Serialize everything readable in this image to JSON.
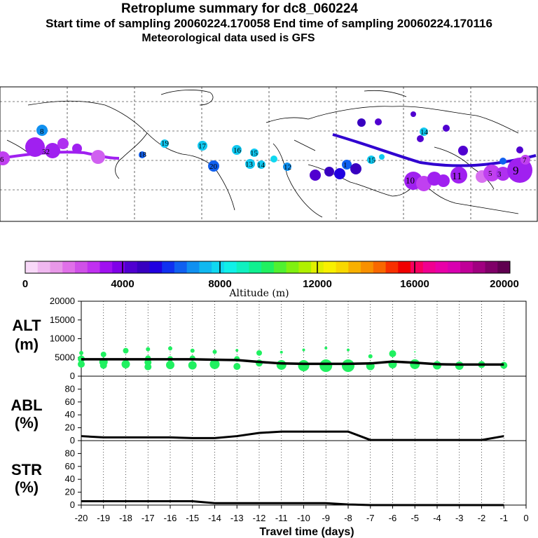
{
  "header": {
    "title": "Retroplume summary for dc8_060224",
    "line2": "Start time of sampling 20060224.170058     End time of sampling 20060224.170116",
    "line3": "Meteorological data used is GFS"
  },
  "colorbar": {
    "colors": [
      "#f8d8f8",
      "#f0b8f0",
      "#e898e8",
      "#e070e8",
      "#d050e8",
      "#c030f0",
      "#a010f0",
      "#8000e8",
      "#5000d0",
      "#3800c0",
      "#2000e0",
      "#1030f0",
      "#1060f0",
      "#1090f0",
      "#10b8f0",
      "#10d8f0",
      "#10f0e8",
      "#10f0c0",
      "#10f090",
      "#20f060",
      "#50f030",
      "#80f010",
      "#b0f000",
      "#e0f000",
      "#f8f000",
      "#f8d800",
      "#f8b000",
      "#f89000",
      "#f86800",
      "#f83000",
      "#f00000",
      "#f80060",
      "#f00090",
      "#e800a8",
      "#d800b0",
      "#c00098",
      "#a00080",
      "#800068",
      "#600050"
    ],
    "tick_labels": [
      "0",
      "4000",
      "8000",
      "12000",
      "16000",
      "20000"
    ],
    "label": "Altitude (m)"
  },
  "chart_data": [
    {
      "type": "scatter",
      "name": "ALT",
      "label_top": "ALT",
      "label_bottom": "(m)",
      "ylim": [
        0,
        20000
      ],
      "yticks": [
        "0",
        "5000",
        "10000",
        "15000",
        "20000"
      ],
      "line": {
        "x": [
          -20,
          -19,
          -18,
          -17,
          -16,
          -15,
          -14,
          -13,
          -12,
          -11,
          -10,
          -9,
          -8,
          -7,
          -6,
          -5,
          -4,
          -3,
          -2,
          -1
        ],
        "y": [
          4500,
          4500,
          4500,
          4500,
          4500,
          4500,
          4400,
          4300,
          3800,
          3400,
          3300,
          3300,
          3300,
          3400,
          3900,
          3600,
          3200,
          3100,
          3100,
          3100
        ]
      },
      "points": [
        {
          "x": -20,
          "y": 6200,
          "s": 3
        },
        {
          "x": -20,
          "y": 4600,
          "s": 5
        },
        {
          "x": -20,
          "y": 3200,
          "s": 5
        },
        {
          "x": -19,
          "y": 5800,
          "s": 4
        },
        {
          "x": -19,
          "y": 3800,
          "s": 6
        },
        {
          "x": -19,
          "y": 2900,
          "s": 5
        },
        {
          "x": -18,
          "y": 6800,
          "s": 4
        },
        {
          "x": -18,
          "y": 3200,
          "s": 6
        },
        {
          "x": -17,
          "y": 7200,
          "s": 3
        },
        {
          "x": -17,
          "y": 4800,
          "s": 4
        },
        {
          "x": -17,
          "y": 3700,
          "s": 5
        },
        {
          "x": -17,
          "y": 2500,
          "s": 5
        },
        {
          "x": -16,
          "y": 7400,
          "s": 3
        },
        {
          "x": -16,
          "y": 4600,
          "s": 4
        },
        {
          "x": -16,
          "y": 3000,
          "s": 6
        },
        {
          "x": -15,
          "y": 6800,
          "s": 3
        },
        {
          "x": -15,
          "y": 4800,
          "s": 4
        },
        {
          "x": -15,
          "y": 2900,
          "s": 6
        },
        {
          "x": -14,
          "y": 6500,
          "s": 3
        },
        {
          "x": -14,
          "y": 3200,
          "s": 7
        },
        {
          "x": -13,
          "y": 6900,
          "s": 2
        },
        {
          "x": -13,
          "y": 4600,
          "s": 4
        },
        {
          "x": -13,
          "y": 2600,
          "s": 5
        },
        {
          "x": -12,
          "y": 6200,
          "s": 4
        },
        {
          "x": -12,
          "y": 3500,
          "s": 5
        },
        {
          "x": -11,
          "y": 6400,
          "s": 2
        },
        {
          "x": -11,
          "y": 3000,
          "s": 7
        },
        {
          "x": -10,
          "y": 7000,
          "s": 2
        },
        {
          "x": -10,
          "y": 2800,
          "s": 8
        },
        {
          "x": -9,
          "y": 7500,
          "s": 2
        },
        {
          "x": -9,
          "y": 2800,
          "s": 9
        },
        {
          "x": -8,
          "y": 7000,
          "s": 2
        },
        {
          "x": -8,
          "y": 2800,
          "s": 9
        },
        {
          "x": -7,
          "y": 5300,
          "s": 3
        },
        {
          "x": -7,
          "y": 2700,
          "s": 6
        },
        {
          "x": -6,
          "y": 6000,
          "s": 5
        },
        {
          "x": -6,
          "y": 3200,
          "s": 6
        },
        {
          "x": -5,
          "y": 6500,
          "s": 1
        },
        {
          "x": -5,
          "y": 3200,
          "s": 7
        },
        {
          "x": -4,
          "y": 2900,
          "s": 6
        },
        {
          "x": -3,
          "y": 2800,
          "s": 6
        },
        {
          "x": -2,
          "y": 3100,
          "s": 5
        },
        {
          "x": -1,
          "y": 2900,
          "s": 5
        }
      ]
    },
    {
      "type": "line",
      "name": "ABL",
      "label_top": "ABL",
      "label_bottom": "(%)",
      "ylim": [
        0,
        100
      ],
      "yticks": [
        "0",
        "20",
        "40",
        "60",
        "80"
      ],
      "x": [
        -20,
        -19,
        -18,
        -17,
        -16,
        -15,
        -14,
        -13,
        -12,
        -11,
        -10,
        -9,
        -8,
        -7,
        -6,
        -5,
        -4,
        -3,
        -2,
        -1
      ],
      "y": [
        7,
        5,
        5,
        5,
        5,
        4,
        4,
        7,
        12,
        14,
        14,
        14,
        14,
        1,
        1,
        1,
        1,
        1,
        1,
        7
      ]
    },
    {
      "type": "line",
      "name": "STR",
      "label_top": "STR",
      "label_bottom": "(%)",
      "ylim": [
        0,
        100
      ],
      "yticks": [
        "0",
        "20",
        "40",
        "60",
        "80"
      ],
      "x": [
        -20,
        -19,
        -18,
        -17,
        -16,
        -15,
        -14,
        -13,
        -12,
        -11,
        -10,
        -9,
        -8,
        -7,
        -6,
        -5,
        -4,
        -3,
        -2,
        -1
      ],
      "y": [
        6,
        6,
        6,
        6,
        6,
        6,
        3,
        3,
        3,
        3,
        3,
        3,
        1,
        0,
        0,
        0,
        0,
        0,
        0,
        0
      ]
    }
  ],
  "xaxis": {
    "ticks": [
      "-20",
      "-19",
      "-18",
      "-17",
      "-16",
      "-15",
      "-14",
      "-13",
      "-12",
      "-11",
      "-10",
      "-9",
      "-8",
      "-7",
      "-6",
      "-5",
      "-4",
      "-3",
      "-2",
      "-1",
      "0"
    ],
    "label": "Travel time (days)"
  },
  "map": {
    "labels": [
      "6",
      "8",
      "32",
      "20",
      "19",
      "17",
      "16",
      "15",
      "13",
      "14",
      "18",
      "12",
      "11",
      "10",
      "9",
      "7",
      "5",
      "3",
      "1",
      "15",
      "14"
    ],
    "colors": {
      "purple": "#a020f0",
      "violet": "#c040f0",
      "blue": "#1060f0",
      "cyan": "#10c8f0",
      "navy": "#3000d0"
    }
  }
}
